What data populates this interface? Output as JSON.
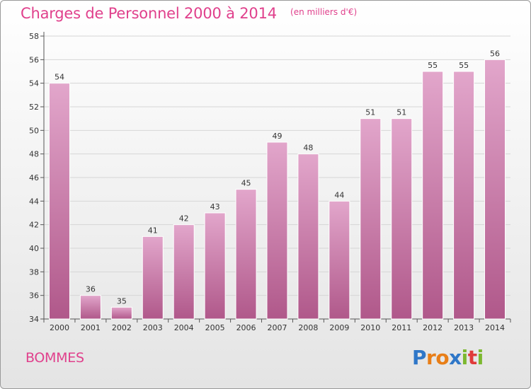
{
  "title": "Charges de Personnel 2000 à 2014",
  "unit": "(en milliers d'€)",
  "commune": "BOMMES",
  "logo": {
    "letters": [
      "P",
      "r",
      "o",
      "x",
      "i",
      "t",
      "i"
    ],
    "letter_colors": [
      "#2f77c8",
      "#e87e17",
      "#e87e17",
      "#2f77c8",
      "#7cb82f",
      "#e03a3a",
      "#7cb82f"
    ]
  },
  "colors": {
    "accent": "#e0408c",
    "bar_top": "#e2a6cb",
    "bar_bottom": "#b0588a",
    "grid": "#d6d6d6"
  },
  "chart_data": {
    "type": "bar",
    "title": "Charges de Personnel 2000 à 2014",
    "subtitle": "(en milliers d'€)",
    "xlabel": "",
    "ylabel": "",
    "categories": [
      "2000",
      "2001",
      "2002",
      "2003",
      "2004",
      "2005",
      "2006",
      "2007",
      "2008",
      "2009",
      "2010",
      "2011",
      "2012",
      "2013",
      "2014"
    ],
    "values": [
      54,
      36,
      35,
      41,
      42,
      43,
      45,
      49,
      48,
      44,
      51,
      51,
      55,
      55,
      56
    ],
    "data_labels": [
      "54",
      "36",
      "35",
      "41",
      "42",
      "43",
      "45",
      "49",
      "48",
      "44",
      "51",
      "51",
      "55",
      "55",
      "56"
    ],
    "ylim": [
      34,
      58
    ],
    "yticks": [
      34,
      36,
      38,
      40,
      42,
      44,
      46,
      48,
      50,
      52,
      54,
      56,
      58
    ],
    "grid": true,
    "legend": "none"
  }
}
